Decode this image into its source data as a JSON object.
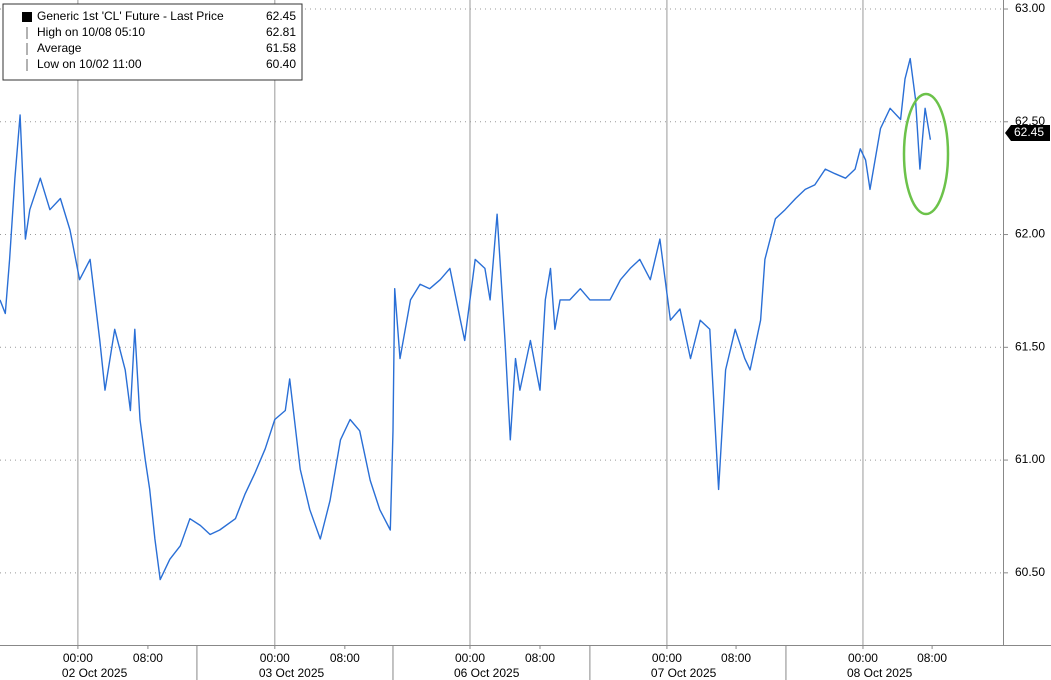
{
  "chart_data": {
    "type": "line",
    "x": [
      0,
      0.6,
      1.1,
      1.7,
      2.3,
      2.9,
      3.4,
      4.6,
      5.7,
      6.9,
      8.0,
      9.1,
      10.3,
      11.4,
      12.0,
      13.1,
      14.3,
      14.9,
      15.4,
      16.0,
      16.6,
      17.1,
      17.7,
      18.3,
      19.4,
      20.6,
      21.7,
      22.9,
      24.0,
      25.1,
      26.9,
      28.0,
      29.1,
      30.3,
      31.4,
      32.6,
      33.1,
      34.3,
      35.4,
      36.6,
      37.7,
      38.9,
      40.0,
      41.1,
      42.3,
      43.4,
      44.6,
      44.9,
      45.1,
      45.7,
      46.9,
      48.0,
      49.1,
      50.3,
      51.4,
      52.6,
      53.1,
      54.3,
      55.4,
      56.0,
      56.8,
      57.7,
      58.3,
      58.9,
      59.4,
      60.6,
      61.7,
      62.3,
      62.9,
      63.4,
      64.0,
      65.1,
      66.3,
      67.4,
      68.6,
      69.7,
      70.9,
      72.0,
      73.1,
      74.3,
      75.4,
      76.6,
      77.7,
      78.9,
      80.0,
      81.1,
      82.1,
      82.9,
      84.0,
      85.1,
      85.7,
      86.9,
      87.4,
      88.6,
      89.7,
      90.9,
      92.0,
      93.1,
      94.3,
      95.4,
      96.6,
      97.7,
      98.3,
      98.9,
      99.4,
      100.6,
      101.7,
      102.9,
      103.4,
      104.0,
      104.6,
      105.1,
      105.7,
      106.3
    ],
    "series": [
      {
        "name": "Generic 1st 'CL' Future - Last Price",
        "color": "#2a6fd6",
        "values": [
          61.71,
          61.65,
          61.89,
          62.25,
          62.53,
          61.98,
          62.11,
          62.25,
          62.11,
          62.16,
          62.02,
          61.8,
          61.89,
          61.53,
          61.31,
          61.58,
          61.4,
          61.22,
          61.58,
          61.18,
          61.0,
          60.87,
          60.65,
          60.47,
          60.56,
          60.62,
          60.74,
          60.71,
          60.67,
          60.69,
          60.74,
          60.85,
          60.94,
          61.05,
          61.18,
          61.22,
          61.36,
          60.96,
          60.78,
          60.65,
          60.82,
          61.09,
          61.18,
          61.13,
          60.91,
          60.78,
          60.69,
          61.13,
          61.76,
          61.45,
          61.71,
          61.78,
          61.76,
          61.8,
          61.85,
          61.62,
          61.53,
          61.89,
          61.85,
          61.71,
          62.09,
          61.53,
          61.09,
          61.45,
          61.31,
          61.53,
          61.31,
          61.71,
          61.85,
          61.58,
          61.71,
          61.71,
          61.76,
          61.71,
          61.71,
          61.71,
          61.8,
          61.85,
          61.89,
          61.8,
          61.98,
          61.62,
          61.67,
          61.45,
          61.62,
          61.58,
          60.87,
          61.4,
          61.58,
          61.45,
          61.4,
          61.62,
          61.89,
          62.07,
          62.11,
          62.16,
          62.2,
          62.22,
          62.29,
          62.27,
          62.25,
          62.29,
          62.38,
          62.33,
          62.2,
          62.47,
          62.56,
          62.51,
          62.69,
          62.78,
          62.6,
          62.29,
          62.56,
          62.42
        ]
      }
    ],
    "legend": [
      {
        "label": "Generic 1st 'CL' Future - Last Price",
        "value": "62.45"
      },
      {
        "label": "High on 10/08 05:10",
        "value": "62.81"
      },
      {
        "label": "Average",
        "value": "61.58"
      },
      {
        "label": "Low on 10/02 11:00",
        "value": "60.40"
      }
    ],
    "last_price": {
      "value": 62.45,
      "label": "62.45"
    },
    "xlim": [
      0,
      114.6
    ],
    "xticks": [
      {
        "value": 8.9,
        "label": "00:00"
      },
      {
        "value": 16.9,
        "label": "08:00"
      },
      {
        "value": 31.4,
        "label": "00:00"
      },
      {
        "value": 39.4,
        "label": "08:00"
      },
      {
        "value": 53.7,
        "label": "00:00"
      },
      {
        "value": 61.7,
        "label": "08:00"
      },
      {
        "value": 76.2,
        "label": "00:00"
      },
      {
        "value": 84.1,
        "label": "08:00"
      },
      {
        "value": 98.6,
        "label": "00:00"
      },
      {
        "value": 106.5,
        "label": "08:00"
      }
    ],
    "date_labels": [
      {
        "value": 8.9,
        "label": "02 Oct 2025"
      },
      {
        "value": 31.4,
        "label": "03 Oct 2025"
      },
      {
        "value": 53.7,
        "label": "06 Oct 2025"
      },
      {
        "value": 76.2,
        "label": "07 Oct 2025"
      },
      {
        "value": 98.6,
        "label": "08 Oct 2025"
      }
    ],
    "day_separators": [
      22.5,
      44.9,
      67.4,
      89.8
    ],
    "ylim": [
      60.18,
      63.04
    ],
    "yticks": [
      {
        "value": 60.5,
        "label": "60.50"
      },
      {
        "value": 61,
        "label": "61.00"
      },
      {
        "value": 61.5,
        "label": "61.50"
      },
      {
        "value": 62,
        "label": "62.00"
      },
      {
        "value": 62.5,
        "label": "62.50"
      },
      {
        "value": 63,
        "label": "63.00"
      }
    ],
    "grid": true
  }
}
